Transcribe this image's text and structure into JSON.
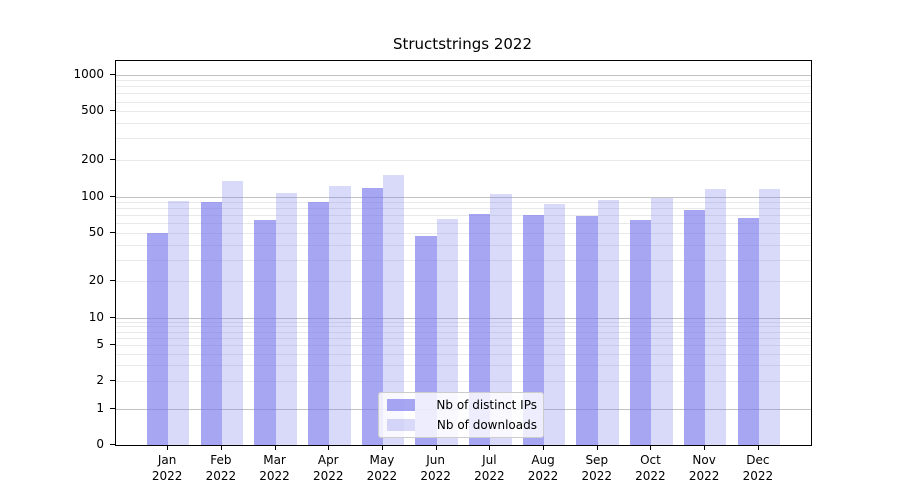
{
  "title": "Structstrings 2022",
  "chart_data": {
    "type": "bar",
    "title": "Structstrings 2022",
    "categories": [
      "Jan",
      "Feb",
      "Mar",
      "Apr",
      "May",
      "Jun",
      "Jul",
      "Aug",
      "Sep",
      "Oct",
      "Nov",
      "Dec"
    ],
    "xtick_year": "2022",
    "series": [
      {
        "name": "Nb of distinct IPs",
        "color": "rgba(118,118,235,0.65)",
        "values": [
          50,
          90,
          64,
          90,
          118,
          47,
          71,
          70,
          69,
          64,
          78,
          67
        ]
      },
      {
        "name": "Nb of downloads",
        "color": "rgba(118,118,235,0.28)",
        "values": [
          91,
          135,
          107,
          122,
          150,
          65,
          105,
          87,
          93,
          97,
          115,
          115
        ]
      }
    ],
    "yticks": [
      0,
      1,
      2,
      5,
      10,
      20,
      50,
      100,
      200,
      500,
      1000
    ],
    "yscale": "symlog",
    "ylim": [
      0,
      1400
    ],
    "grid": "on",
    "legend_position": "lower center",
    "grid_major_color": "#c3c3c3",
    "grid_minor_color": "#e9e9e9"
  }
}
